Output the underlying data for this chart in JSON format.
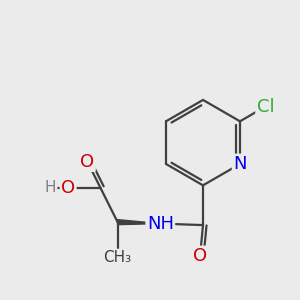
{
  "bg_color": "#ebebeb",
  "atom_colors": {
    "C": "#404040",
    "O": "#cc0000",
    "N": "#0000ee",
    "Cl": "#33aa33",
    "H": "#808080"
  },
  "bond_color": "#404040",
  "bond_width": 1.6,
  "font_size_atoms": 13,
  "font_size_small": 11,
  "figsize": [
    3.0,
    3.0
  ],
  "dpi": 100,
  "xlim": [
    0.0,
    10.0
  ],
  "ylim": [
    1.5,
    9.0
  ]
}
